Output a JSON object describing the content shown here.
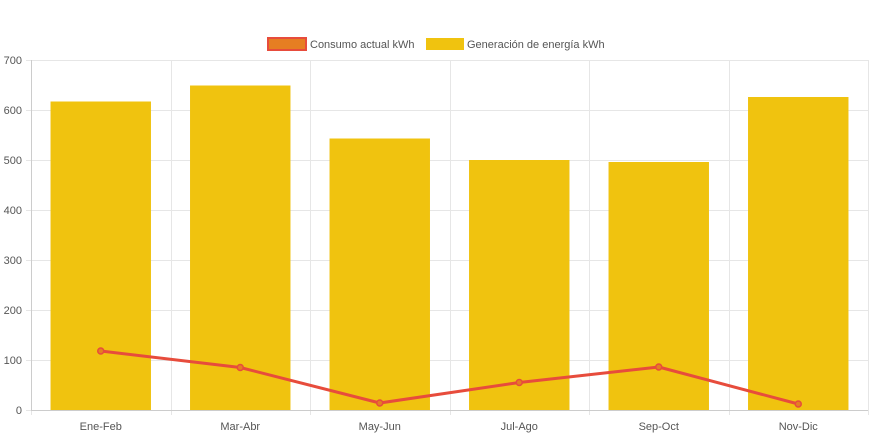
{
  "chart_data": {
    "type": "bar",
    "categories": [
      "Ene-Feb",
      "Mar-Abr",
      "May-Jun",
      "Jul-Ago",
      "Sep-Oct",
      "Nov-Dic"
    ],
    "ylim": [
      0,
      700
    ],
    "yticks": [
      0,
      100,
      200,
      300,
      400,
      500,
      600,
      700
    ],
    "grid": true,
    "legend_position": "top-center",
    "series": [
      {
        "name": "Generación de energía kWh",
        "type": "bar",
        "color": "#f0c30f",
        "values": [
          617,
          649,
          543,
          500,
          496,
          626
        ]
      },
      {
        "name": "Consumo actual kWh",
        "type": "line",
        "color": "#e74c3c",
        "fill_color": "#e67e22",
        "values": [
          118,
          85,
          14,
          55,
          86,
          12
        ]
      }
    ]
  }
}
